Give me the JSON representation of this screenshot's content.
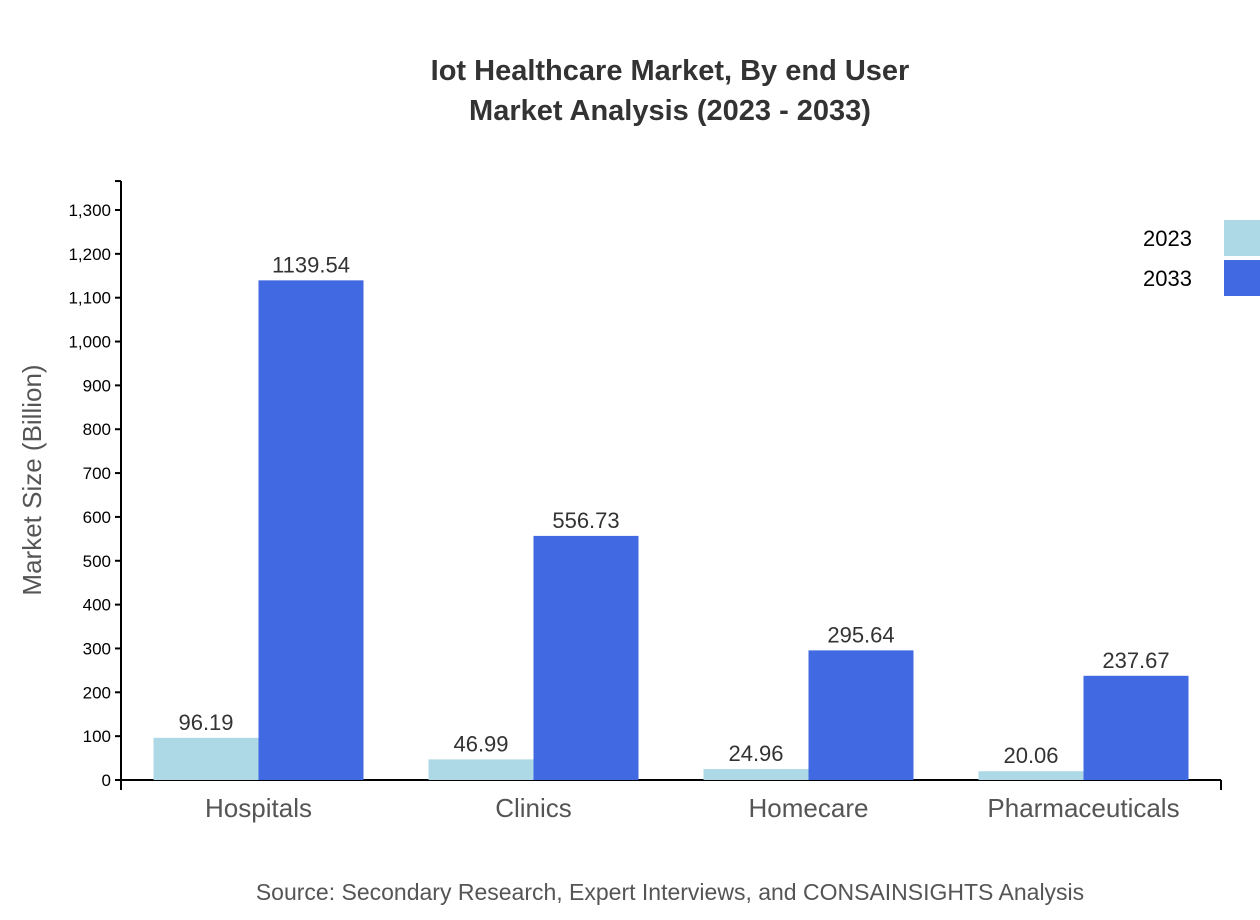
{
  "chart_data": {
    "type": "bar",
    "title": [
      "Iot Healthcare Market, By end User",
      "Market Analysis (2023 - 2033)"
    ],
    "xlabel": "",
    "ylabel": "Market Size (Billion)",
    "ylim": [
      0,
      1366
    ],
    "yticks": [
      0,
      100,
      200,
      300,
      400,
      500,
      600,
      700,
      800,
      900,
      1000,
      1100,
      1200,
      1300
    ],
    "ytick_labels": [
      "0",
      "100",
      "200",
      "300",
      "400",
      "500",
      "600",
      "700",
      "800",
      "900",
      "1,000",
      "1,100",
      "1,200",
      "1,300"
    ],
    "categories": [
      "Hospitals",
      "Clinics",
      "Homecare",
      "Pharmaceuticals"
    ],
    "series": [
      {
        "name": "2023",
        "color": "#add8e6",
        "values": [
          96.19,
          46.99,
          24.96,
          20.06
        ]
      },
      {
        "name": "2033",
        "color": "#4169e1",
        "values": [
          1139.54,
          556.73,
          295.64,
          237.67
        ]
      }
    ],
    "legend_position": "top-right",
    "grid": false,
    "source": "Source: Secondary Research, Expert Interviews, and CONSAINSIGHTS Analysis"
  }
}
